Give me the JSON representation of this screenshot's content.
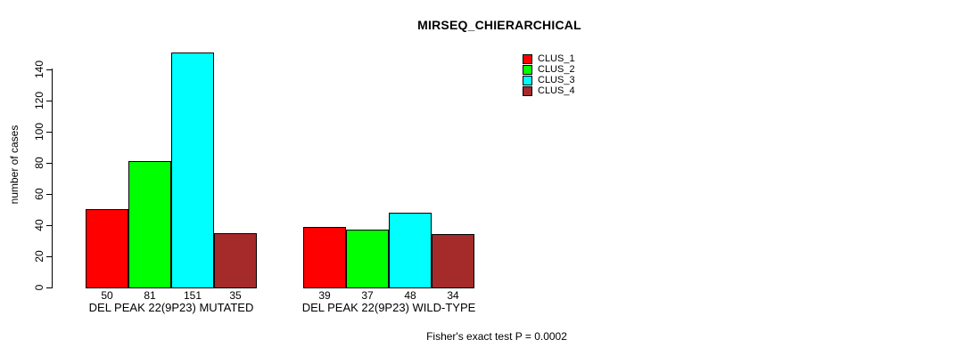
{
  "page": {
    "background": "#ffffff",
    "text_color": "#000000"
  },
  "chart_data": {
    "type": "bar",
    "title": "MIRSEQ_CHIERARCHICAL",
    "xlabel": "",
    "ylabel": "number of cases",
    "yticks": [
      0,
      20,
      40,
      60,
      80,
      100,
      120,
      140
    ],
    "ylim": [
      0,
      151
    ],
    "grid": false,
    "legend_position": "top-right",
    "value_labels": true,
    "series": [
      {
        "name": "CLUS_1",
        "color": "#ff0000"
      },
      {
        "name": "CLUS_2",
        "color": "#00ff00"
      },
      {
        "name": "CLUS_3",
        "color": "#00ffff"
      },
      {
        "name": "CLUS_4",
        "color": "#a52a2a"
      }
    ],
    "groups": [
      {
        "label": "DEL PEAK 22(9P23) MUTATED",
        "values": [
          50,
          81,
          151,
          35
        ]
      },
      {
        "label": "DEL PEAK 22(9P23) WILD-TYPE",
        "values": [
          39,
          37,
          48,
          34
        ]
      }
    ],
    "annotation": "Fisher's exact test P = 0.0002"
  }
}
